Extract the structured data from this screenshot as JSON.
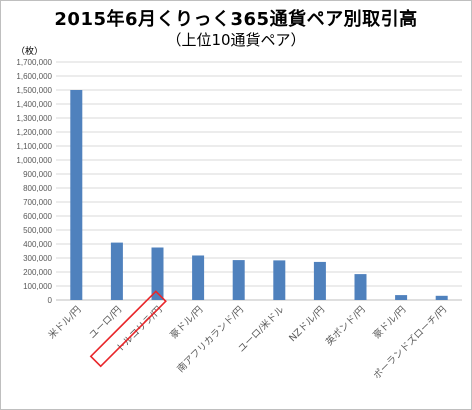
{
  "chart_data": {
    "type": "bar",
    "title": "2015年6月くりっく365通貨ペア別取引高",
    "subtitle": "（上位10通貨ペア）",
    "ylabel": "（枚）",
    "xlabel": "",
    "ylim": [
      0,
      1700000
    ],
    "yticks": [
      "0",
      "100,000",
      "200,000",
      "300,000",
      "400,000",
      "500,000",
      "600,000",
      "700,000",
      "800,000",
      "900,000",
      "1,000,000",
      "1,100,000",
      "1,200,000",
      "1,300,000",
      "1,400,000",
      "1,500,000",
      "1,600,000",
      "1,700,000"
    ],
    "categories": [
      "米ドル/円",
      "ユーロ/円",
      "トルコリラ/円",
      "豪ドル/円",
      "南アフリカランド/円",
      "ユーロ/米ドル",
      "NZドル/円",
      "英ポンド/円",
      "豪ドル/円",
      "ポーランドズローチ/円"
    ],
    "values": [
      1500000,
      410000,
      375000,
      318000,
      285000,
      283000,
      272000,
      185000,
      35000,
      30000
    ],
    "highlight_index": 2,
    "grid": true,
    "bar_color": "#4f81bd",
    "highlight_color": "#e8262a",
    "gridline_color": "#d9d9d9"
  }
}
